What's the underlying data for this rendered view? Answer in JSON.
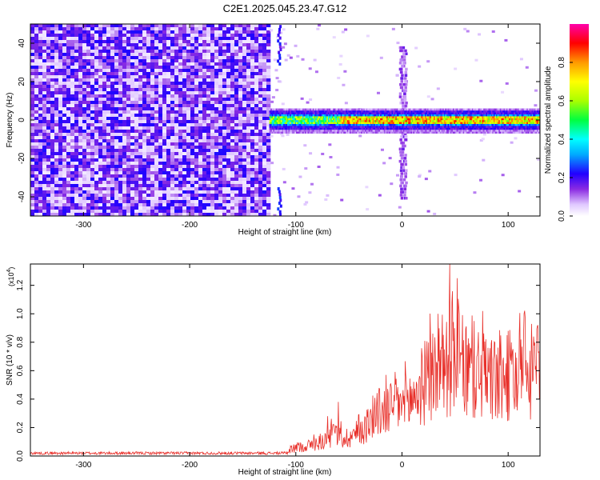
{
  "figure": {
    "title": "C2E1.2025.045.23.47.G12"
  },
  "colors": {
    "snr_line": "#e8302a",
    "colormap_stops": [
      "#ffffff",
      "#e6dcff",
      "#b9a6ff",
      "#6a2cff",
      "#4a00ff",
      "#0000ff",
      "#00aaff",
      "#00ffff",
      "#00ff55",
      "#aaff00",
      "#ffff00",
      "#ff8800",
      "#ff0000",
      "#ff00aa"
    ]
  },
  "chart_data": [
    {
      "type": "heatmap",
      "xlabel": "Height of straight line (km)",
      "ylabel": "Frequency (Hz)",
      "xlim": [
        -350,
        130
      ],
      "ylim": [
        -50,
        50
      ],
      "xticks": [
        -300,
        -200,
        -100,
        0,
        100
      ],
      "yticks": [
        -40,
        -20,
        0,
        20,
        40
      ],
      "colorbar": {
        "label": "Normalized spectral amplitude",
        "range": [
          0.0,
          1.0
        ],
        "ticks": [
          "0.0",
          "0.2",
          "0.4",
          "0.6",
          "0.8"
        ]
      },
      "regions": [
        {
          "x": [
            -350,
            -125
          ],
          "freq": [
            -50,
            50
          ],
          "amplitude": 0.18
        },
        {
          "x": [
            -125,
            130
          ],
          "freq": [
            -3,
            4
          ],
          "amplitude": 0.55
        },
        {
          "x": [
            -3,
            3
          ],
          "freq": [
            -40,
            40
          ],
          "amplitude": 0.12
        },
        {
          "x": [
            -118,
            -114
          ],
          "freq": [
            30,
            50
          ],
          "amplitude": 0.2
        }
      ]
    },
    {
      "type": "line",
      "xlabel": "Height of straight line (km)",
      "ylabel": "SNR (10 * v/v)",
      "multiplier": "(x10^4)",
      "xlim": [
        -350,
        130
      ],
      "ylim": [
        0.0,
        1.35
      ],
      "xticks": [
        -300,
        -200,
        -100,
        0,
        100
      ],
      "yticks": [
        0.0,
        0.2,
        0.4,
        0.6,
        0.8,
        1.0,
        1.2
      ],
      "series": [
        {
          "x": [
            -350,
            -300,
            -250,
            -200,
            -150,
            -110,
            -100,
            -90,
            -75,
            -62,
            -55,
            -45,
            -35,
            -25,
            -15,
            -5,
            0,
            10,
            20,
            30,
            40,
            50,
            60,
            70,
            80,
            90,
            100,
            110,
            120,
            130
          ],
          "y": [
            0.02,
            0.02,
            0.02,
            0.02,
            0.02,
            0.02,
            0.06,
            0.07,
            0.1,
            0.16,
            0.12,
            0.15,
            0.2,
            0.3,
            0.32,
            0.38,
            0.35,
            0.4,
            0.5,
            0.58,
            0.62,
            0.72,
            0.58,
            0.6,
            0.55,
            0.52,
            0.56,
            0.55,
            0.58,
            0.6
          ]
        }
      ],
      "peaks": [
        {
          "x": -70,
          "y": 0.28
        },
        {
          "x": -60,
          "y": 0.38
        },
        {
          "x": 45,
          "y": 1.35
        },
        {
          "x": 52,
          "y": 1.25
        },
        {
          "x": 34,
          "y": 1.0
        },
        {
          "x": 128,
          "y": 0.92
        }
      ]
    }
  ]
}
